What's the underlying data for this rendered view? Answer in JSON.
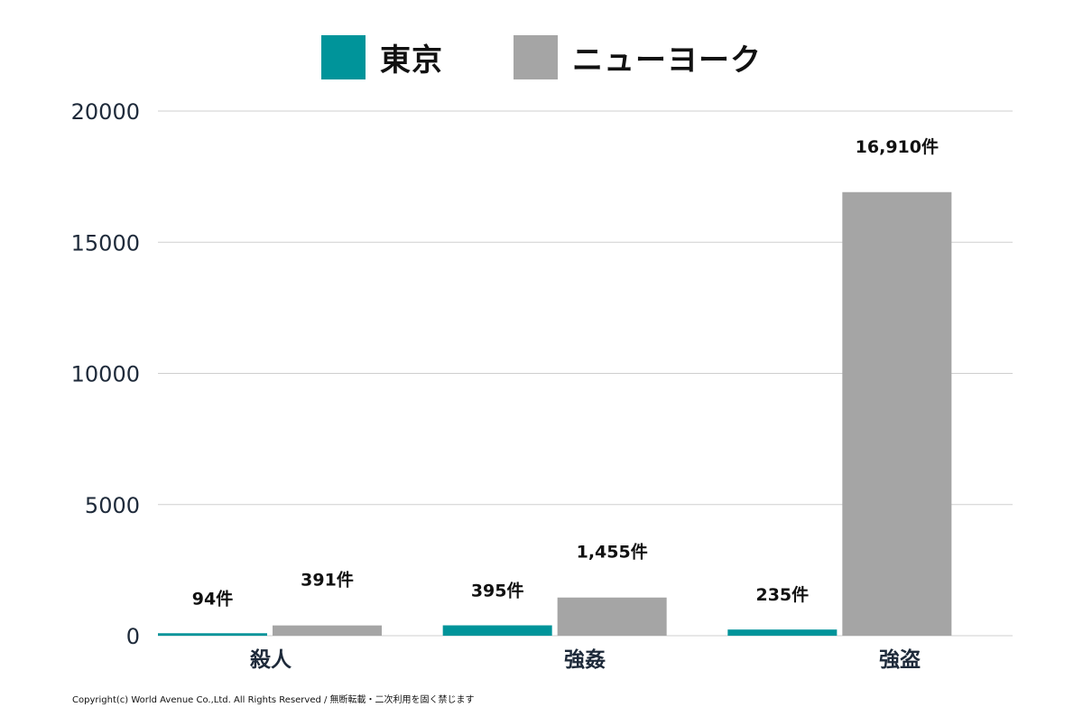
{
  "colors": {
    "tokyo": "#00949a",
    "new_york": "#a5a5a5",
    "grid": "#cfcfcf",
    "axis_text": "#1e2a3a",
    "label_text": "#111111"
  },
  "legend": {
    "items": [
      {
        "label": "東京",
        "color": "#00949a"
      },
      {
        "label": "ニューヨーク",
        "color": "#a5a5a5"
      }
    ]
  },
  "chart_data": {
    "type": "bar",
    "categories": [
      "殺人",
      "強姦",
      "強盗"
    ],
    "series": [
      {
        "name": "東京",
        "values": [
          94,
          395,
          235
        ],
        "data_labels": [
          "94件",
          "395件",
          "235件"
        ]
      },
      {
        "name": "ニューヨーク",
        "values": [
          391,
          1455,
          16910
        ],
        "data_labels": [
          "391件",
          "1,455件",
          "16,910件"
        ]
      }
    ],
    "ylim": [
      0,
      20000
    ],
    "yticks": [
      0,
      5000,
      10000,
      15000,
      20000
    ],
    "ytick_labels": [
      "0",
      "5000",
      "10000",
      "15000",
      "20000"
    ],
    "grid": true,
    "legend_position": "top"
  },
  "footer": {
    "copyright": "Copyright(c) World Avenue Co.,Ltd. All Rights Reserved / 無断転載・二次利用を固く禁じます"
  }
}
